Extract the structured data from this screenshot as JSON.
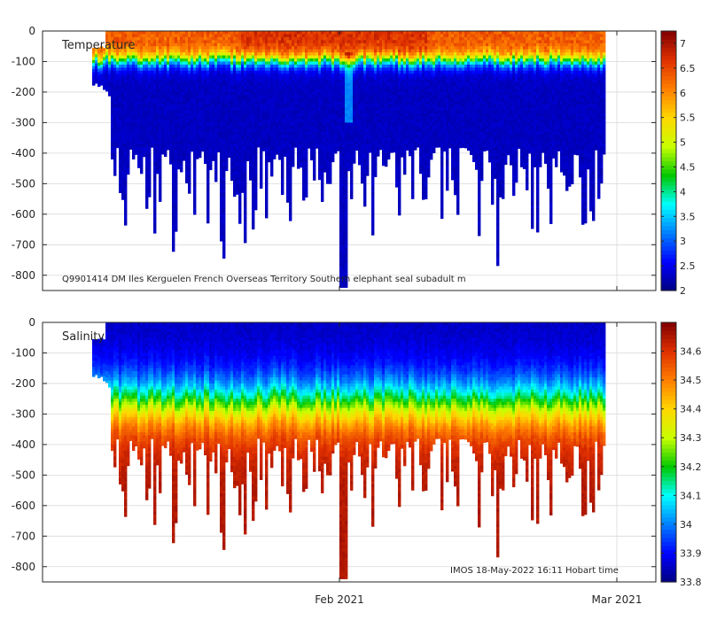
{
  "chart_data": [
    {
      "type": "heatmap",
      "title": "Temperature",
      "variable": "temperature",
      "xlabel": "",
      "ylabel": "",
      "ylim": [
        -850,
        0
      ],
      "yticks": [
        0,
        -100,
        -200,
        -300,
        -400,
        -500,
        -600,
        -700,
        -800
      ],
      "ytick_labels": [
        "0",
        "-100",
        "-200",
        "-300",
        "-400",
        "-500",
        "-600",
        "-700",
        "-800"
      ],
      "xticks": [
        "Feb 2021",
        "Mar 2021"
      ],
      "colorbar": {
        "range": [
          2,
          7.25
        ],
        "ticks": [
          2,
          2.5,
          3,
          3.5,
          4,
          4.5,
          5,
          5.5,
          6,
          6.5,
          7
        ],
        "tick_labels": [
          "2",
          "2.5",
          "3",
          "3.5",
          "4",
          "4.5",
          "5",
          "5.5",
          "6",
          "6.5",
          "7"
        ]
      },
      "profile": {
        "surface_value": 6.2,
        "surface_value_warm": 7.0,
        "thermocline_depth": -90,
        "deep_value": 2.3,
        "max_depth_range": [
          -300,
          -840
        ]
      },
      "annotation": "Q9901414 DM Iles Kerguelen French Overseas Territory Southern elephant seal subadult m"
    },
    {
      "type": "heatmap",
      "title": "Salinity",
      "variable": "salinity",
      "xlabel": "",
      "ylabel": "",
      "ylim": [
        -850,
        0
      ],
      "yticks": [
        0,
        -100,
        -200,
        -300,
        -400,
        -500,
        -600,
        -700,
        -800
      ],
      "ytick_labels": [
        "0",
        "-100",
        "-200",
        "-300",
        "-400",
        "-500",
        "-600",
        "-700",
        "-800"
      ],
      "xticks": [
        "Feb 2021",
        "Mar 2021"
      ],
      "colorbar": {
        "range": [
          33.8,
          34.7
        ],
        "ticks": [
          33.8,
          33.9,
          34,
          34.1,
          34.2,
          34.3,
          34.4,
          34.5,
          34.6
        ],
        "tick_labels": [
          "33.8",
          "33.9",
          "34",
          "34.1",
          "34.2",
          "34.3",
          "34.4",
          "34.5",
          "34.6"
        ]
      },
      "profile": {
        "surface_value": 33.85,
        "halocline_depth": -260,
        "deep_value": 34.65,
        "max_depth_range": [
          -300,
          -840
        ]
      },
      "annotation": "IMOS 18-May-2022 16:11 Hobart time"
    }
  ],
  "colors": {
    "axis": "#262626",
    "grid": "#d9d9d9",
    "colormap": [
      "#00007f",
      "#0000ff",
      "#007fff",
      "#00ffff",
      "#00c800",
      "#c8ff00",
      "#ffd700",
      "#ff7f00",
      "#e03000",
      "#800000"
    ]
  }
}
